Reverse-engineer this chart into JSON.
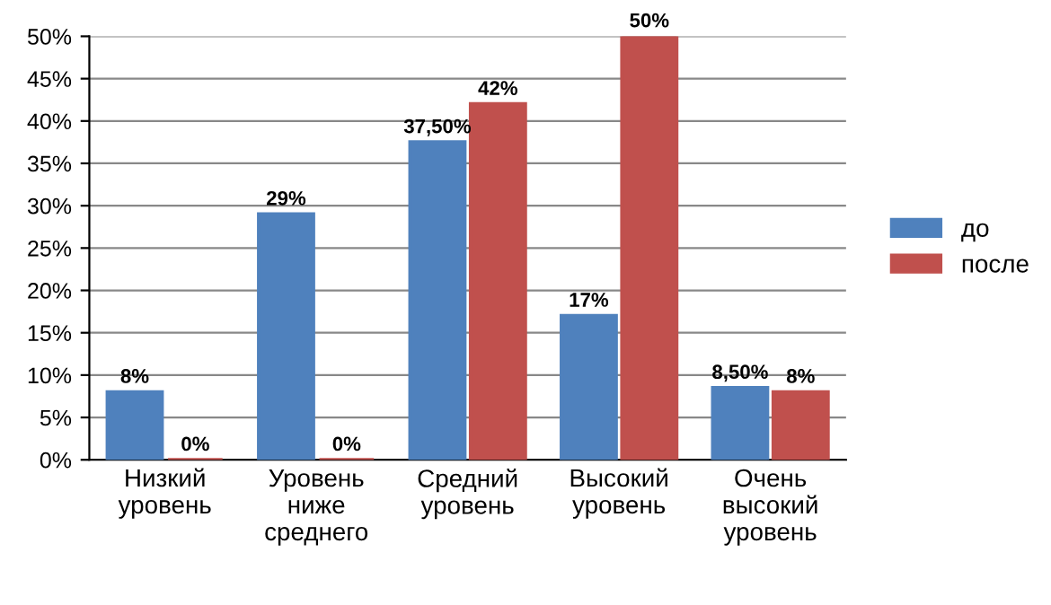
{
  "chart_data": {
    "type": "bar",
    "categories": [
      "Низкий\nуровень",
      "Уровень\nниже\nсреднего",
      "Средний\nуровень",
      "Высокий\nуровень",
      "Очень\nвысокий\nуровень"
    ],
    "series": [
      {
        "name": "до",
        "color": "#4f81bd",
        "values": [
          8,
          29,
          37.5,
          17,
          8.5
        ],
        "value_labels": [
          "8%",
          "29%",
          "37,50%",
          "17%",
          "8,50%"
        ]
      },
      {
        "name": "после",
        "color": "#c0504d",
        "values": [
          0,
          0,
          42,
          50,
          8
        ],
        "value_labels": [
          "0%",
          "0%",
          "42%",
          "50%",
          "8%"
        ]
      }
    ],
    "ylim": [
      0,
      50
    ],
    "yticks": [
      {
        "value": 0,
        "label": "0%"
      },
      {
        "value": 5,
        "label": "5%"
      },
      {
        "value": 10,
        "label": "10%"
      },
      {
        "value": 15,
        "label": "15%"
      },
      {
        "value": 20,
        "label": "20%"
      },
      {
        "value": 25,
        "label": "25%"
      },
      {
        "value": 30,
        "label": "30%"
      },
      {
        "value": 35,
        "label": "35%"
      },
      {
        "value": 40,
        "label": "40%"
      },
      {
        "value": 45,
        "label": "45%"
      },
      {
        "value": 50,
        "label": "50%"
      }
    ],
    "grid": "y",
    "legend": "right"
  }
}
